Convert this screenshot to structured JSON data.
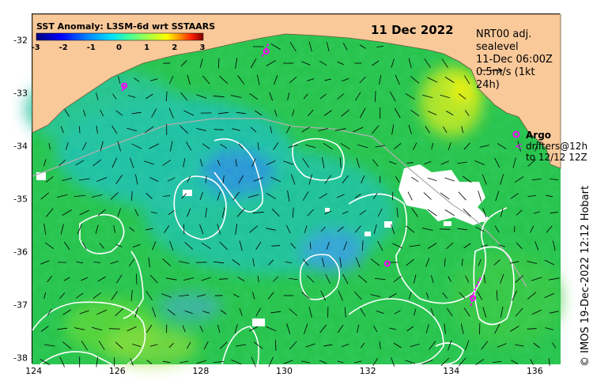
{
  "map": {
    "title": "11 Dec 2022",
    "colorbar": {
      "label": "SST Anomaly: L3SM-6d wrt SSTAARS",
      "ticks": [
        "-3",
        "-2",
        "-1",
        "0",
        "1",
        "2",
        "3"
      ],
      "colors": [
        "#00007f",
        "#0000ff",
        "#0080ff",
        "#00e0ff",
        "#40ff9f",
        "#b0ff40",
        "#ffff00",
        "#ff9000",
        "#ff2000",
        "#800000"
      ]
    },
    "info": {
      "line1": "NRT00 adj. sealevel",
      "line2": "11-Dec 06:00Z",
      "line3": "0.5m/s (1kt 24h)"
    },
    "legend": {
      "argo_label": "Argo",
      "drifter_symbol": "<",
      "drifter_label1": "drifters@12h",
      "drifter_label2": "to 12/12 12Z"
    },
    "credit": "© IMOS 19-Dec-2022 12:12 Hobart",
    "y_axis_labels": [
      "-32",
      "-33",
      "-34",
      "-35",
      "-36",
      "-37",
      "-38"
    ],
    "x_axis_labels": [
      "124",
      "126",
      "128",
      "130",
      "132",
      "134",
      "136"
    ],
    "colors": {
      "land": "#f9c99a",
      "ocean_base": "#27c24a",
      "cool_anomaly": "#1fbfb0",
      "cold_anomaly": "#2a8fe0",
      "warm_anomaly": "#c8e81c",
      "contour": "#ffffff",
      "bathymetry": "#b0b0b0",
      "argo": "#ff00ff"
    },
    "argo_floats": [
      {
        "lon": 129.55,
        "lat": -32.2
      },
      {
        "lon": 126.15,
        "lat": -32.85
      },
      {
        "lon": 132.45,
        "lat": -36.2
      },
      {
        "lon": 134.5,
        "lat": -36.85
      }
    ],
    "drifter_tracks": [
      [
        [
          129.45,
          -32.3
        ],
        [
          129.55,
          -32.15
        ],
        [
          129.6,
          -32.05
        ]
      ],
      [
        [
          126.1,
          -32.95
        ],
        [
          126.15,
          -32.85
        ],
        [
          126.2,
          -32.8
        ]
      ],
      [
        [
          134.45,
          -37.0
        ],
        [
          134.5,
          -36.8
        ],
        [
          134.6,
          -36.6
        ],
        [
          134.7,
          -36.45
        ]
      ]
    ]
  }
}
